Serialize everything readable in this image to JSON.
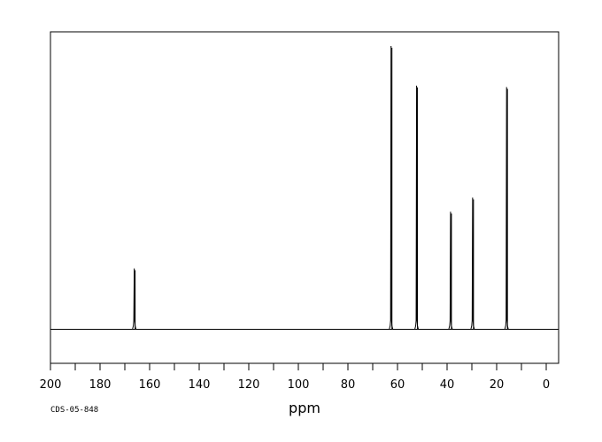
{
  "chart_data": {
    "type": "line",
    "title": "",
    "xlabel": "ppm",
    "ylabel": "",
    "xlim": [
      200,
      -5
    ],
    "x_reversed": true,
    "ylim": [
      -0.12,
      1.05
    ],
    "baseline": 0,
    "x_ticks": [
      200,
      180,
      160,
      140,
      120,
      100,
      80,
      60,
      40,
      20,
      0
    ],
    "x_minor_step": 10,
    "grid": false,
    "legend": "none",
    "line_color": "#000000",
    "series": [
      {
        "peaks": [
          {
            "ppm": 166.2,
            "intensity": 0.215
          },
          {
            "ppm": 62.6,
            "intensity": 1.0
          },
          {
            "ppm": 52.3,
            "intensity": 0.86
          },
          {
            "ppm": 38.6,
            "intensity": 0.415
          },
          {
            "ppm": 29.7,
            "intensity": 0.465
          },
          {
            "ppm": 16.0,
            "intensity": 0.855
          }
        ]
      }
    ]
  },
  "footer": {
    "code": "CDS-05-848"
  }
}
